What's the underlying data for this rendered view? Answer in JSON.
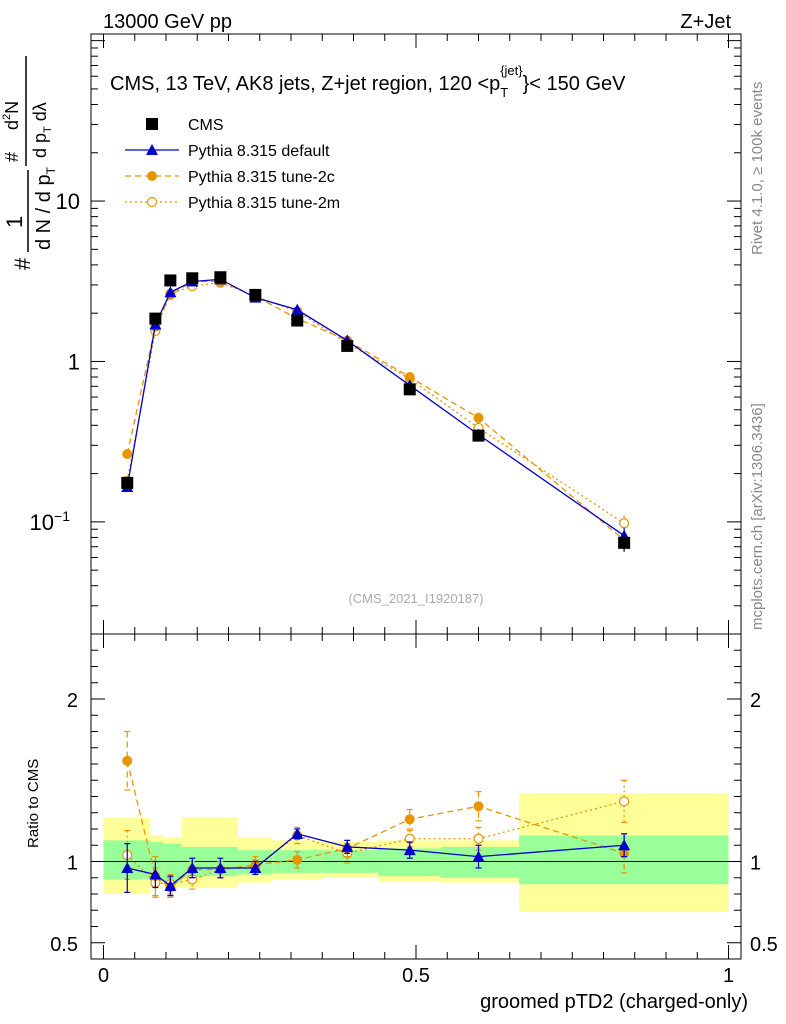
{
  "header": {
    "left": "13000 GeV pp",
    "right": "Z+Jet"
  },
  "main_title": "CMS, 13 TeV, AK8 jets, Z+jet region, 120 <p",
  "main_title_sup": "{jet}",
  "main_title_sub": "T",
  "main_title_end": "}< 150 GeV",
  "side_labels": {
    "rivet": "Rivet 4.1.0, ≥ 100k events",
    "mcplots": "mcplots.cern.ch [arXiv:1306.3436]"
  },
  "watermark": "(CMS_2021_I1920187)",
  "ylabel_top": {
    "frac_num": "1",
    "frac_den_a": "d N / d p",
    "frac_den_a_sub": "T",
    "hash1": "#",
    "hash2": "#",
    "num": "d",
    "num_sup": "2",
    "num_end": "N",
    "den": "d p",
    "den_sub": "T",
    "den_end": " dλ"
  },
  "ylabel_bottom": "Ratio to CMS",
  "xlabel": "groomed pTD2 (charged-only)",
  "colors": {
    "cms": "#000000",
    "default": "#0000cc",
    "tune2c": "#e69500",
    "tune2m": "#e69500",
    "band_inner": "#99ff99",
    "band_outer": "#ffff99"
  },
  "legend": [
    {
      "key": "cms",
      "label": "CMS"
    },
    {
      "key": "default",
      "label": "Pythia 8.315 default"
    },
    {
      "key": "tune2c",
      "label": "Pythia 8.315 tune-2c"
    },
    {
      "key": "tune2m",
      "label": "Pythia 8.315 tune-2m"
    }
  ],
  "chart_data": {
    "type": "line",
    "yscale": "log",
    "xlim": [
      -0.02,
      1.02
    ],
    "ylim": [
      0.02,
      110
    ],
    "x_ticks": [
      {
        "v": 0,
        "label": "0"
      },
      {
        "v": 0.5,
        "label": "0.5"
      },
      {
        "v": 1,
        "label": "1"
      }
    ],
    "y_ticks": [
      {
        "v": 0.1,
        "label": "10",
        "sup": "−1"
      },
      {
        "v": 1,
        "label": "1",
        "sup": ""
      },
      {
        "v": 10,
        "label": "10",
        "sup": ""
      }
    ],
    "ratio_ylim": [
      0.4,
      2.4
    ],
    "ratio_ticks": [
      {
        "v": 0.5,
        "label": "0.5"
      },
      {
        "v": 1,
        "label": "1"
      },
      {
        "v": 2,
        "label": "2"
      }
    ],
    "bin_edges": [
      0,
      0.075,
      0.095,
      0.125,
      0.16,
      0.215,
      0.27,
      0.35,
      0.44,
      0.54,
      0.665,
      1.0
    ],
    "x": [
      0.038,
      0.083,
      0.107,
      0.142,
      0.187,
      0.243,
      0.31,
      0.39,
      0.49,
      0.6,
      0.833
    ],
    "series": [
      {
        "name": "CMS",
        "key": "cms",
        "values": [
          0.175,
          1.85,
          3.2,
          3.3,
          3.35,
          2.6,
          1.8,
          1.25,
          0.67,
          0.345,
          0.074
        ]
      },
      {
        "name": "Pythia 8.315 default",
        "key": "default",
        "values": [
          0.165,
          1.7,
          2.7,
          3.15,
          3.25,
          2.5,
          2.1,
          1.35,
          0.71,
          0.35,
          0.082
        ],
        "ratio": [
          0.96,
          0.92,
          0.85,
          0.96,
          0.96,
          0.96,
          1.17,
          1.09,
          1.07,
          1.03,
          1.1
        ],
        "ratio_err": [
          0.15,
          0.08,
          0.06,
          0.06,
          0.06,
          0.04,
          0.03,
          0.04,
          0.05,
          0.07,
          0.07
        ]
      },
      {
        "name": "Pythia 8.315 tune-2c",
        "key": "tune2c",
        "values": [
          0.265,
          1.65,
          2.6,
          3.15,
          3.15,
          2.55,
          1.85,
          1.35,
          0.8,
          0.445,
          0.077
        ],
        "ratio": [
          1.62,
          0.91,
          0.84,
          0.95,
          0.95,
          0.98,
          1.01,
          1.08,
          1.26,
          1.34,
          1.05
        ],
        "ratio_err": [
          0.18,
          0.12,
          0.06,
          0.05,
          0.05,
          0.05,
          0.05,
          0.05,
          0.06,
          0.09,
          0.12
        ]
      },
      {
        "name": "Pythia 8.315 tune-2m",
        "key": "tune2m",
        "values": [
          0.18,
          1.55,
          2.65,
          2.95,
          3.1,
          2.55,
          2.05,
          1.3,
          0.78,
          0.385,
          0.098
        ],
        "ratio": [
          1.04,
          0.87,
          0.86,
          0.89,
          0.95,
          0.97,
          1.16,
          1.05,
          1.14,
          1.14,
          1.37
        ],
        "ratio_err": [
          0.15,
          0.09,
          0.06,
          0.06,
          0.05,
          0.04,
          0.05,
          0.06,
          0.05,
          0.07,
          0.13
        ]
      }
    ],
    "bands": {
      "inner": [
        [
          0.89,
          1.13
        ],
        [
          0.88,
          1.12
        ],
        [
          0.87,
          1.11
        ],
        [
          0.9,
          1.09
        ],
        [
          0.91,
          1.09
        ],
        [
          0.92,
          1.07
        ],
        [
          0.93,
          1.07
        ],
        [
          0.93,
          1.07
        ],
        [
          0.91,
          1.08
        ],
        [
          0.9,
          1.09
        ],
        [
          0.86,
          1.16
        ]
      ],
      "outer": [
        [
          0.8,
          1.27
        ],
        [
          0.86,
          1.16
        ],
        [
          0.84,
          1.15
        ],
        [
          0.84,
          1.27
        ],
        [
          0.84,
          1.27
        ],
        [
          0.87,
          1.15
        ],
        [
          0.89,
          1.13
        ],
        [
          0.9,
          1.12
        ],
        [
          0.88,
          1.13
        ],
        [
          0.87,
          1.13
        ],
        [
          0.69,
          1.42
        ]
      ]
    },
    "errors_top": [
      0.05,
      0.06,
      0.05,
      0.05,
      0.05,
      0.05,
      0.05,
      0.06,
      0.05,
      0.08,
      0.12
    ]
  }
}
